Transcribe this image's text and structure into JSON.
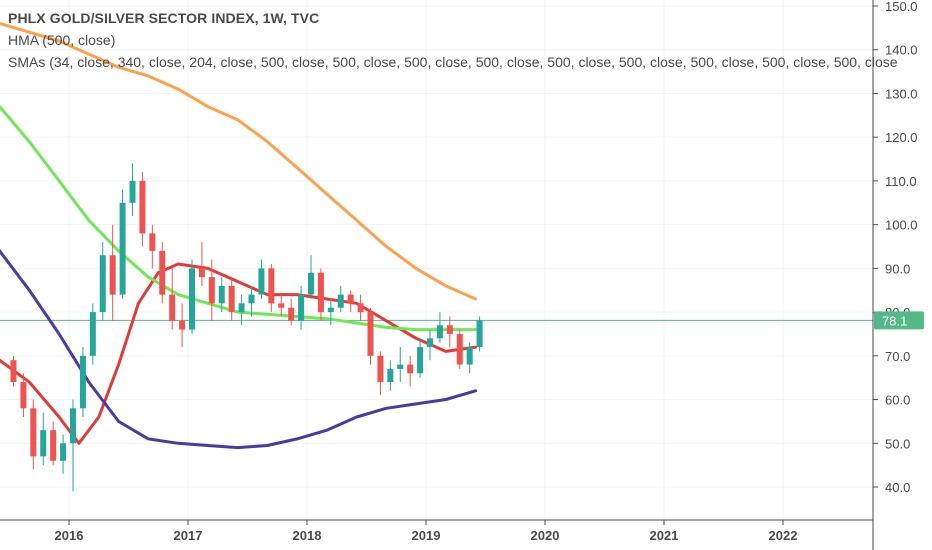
{
  "legend": {
    "title": "PHLX GOLD/SILVER SECTOR INDEX, 1W, TVC",
    "hma": "HMA (500, close)",
    "smas": "SMAs (34, close, 340, close, 204, close, 500, close, 500, close, 500, close, 500, close, 500, close, 500, close, 500, close, 500, close, 500, close"
  },
  "colors": {
    "up": "#26a69a",
    "down": "#ef5350",
    "orange": "#ffa04d",
    "green": "#6ee856",
    "red": "#e53935",
    "purple": "#4a3aa1",
    "price_tag": "#53b987"
  },
  "chart_data": {
    "type": "candlestick",
    "title": "PHLX GOLD/SILVER SECTOR INDEX, 1W, TVC",
    "ylim": [
      35,
      151
    ],
    "y_ticks": [
      "150.0",
      "140.0",
      "130.0",
      "120.0",
      "110.0",
      "100.0",
      "90.0",
      "80.0",
      "70.0",
      "60.0",
      "50.0",
      "40.0"
    ],
    "x_ticks": [
      "2016",
      "2017",
      "2018",
      "2019",
      "2020",
      "2021",
      "2022"
    ],
    "last_price": "78.1",
    "candles": [
      {
        "x": "2015-07",
        "o": 69,
        "h": 70,
        "l": 63,
        "c": 64
      },
      {
        "x": "2015-08",
        "o": 64,
        "h": 66,
        "l": 56,
        "c": 58
      },
      {
        "x": "2015-09",
        "o": 58,
        "h": 60,
        "l": 44,
        "c": 47
      },
      {
        "x": "2015-10",
        "o": 47,
        "h": 57,
        "l": 45,
        "c": 53
      },
      {
        "x": "2015-11",
        "o": 53,
        "h": 55,
        "l": 45,
        "c": 46
      },
      {
        "x": "2015-12",
        "o": 46,
        "h": 52,
        "l": 43,
        "c": 50
      },
      {
        "x": "2016-01",
        "o": 50,
        "h": 60,
        "l": 39,
        "c": 58
      },
      {
        "x": "2016-02",
        "o": 58,
        "h": 72,
        "l": 56,
        "c": 70
      },
      {
        "x": "2016-03",
        "o": 70,
        "h": 82,
        "l": 68,
        "c": 80
      },
      {
        "x": "2016-04",
        "o": 80,
        "h": 96,
        "l": 78,
        "c": 93
      },
      {
        "x": "2016-05",
        "o": 93,
        "h": 100,
        "l": 78,
        "c": 84
      },
      {
        "x": "2016-06",
        "o": 84,
        "h": 108,
        "l": 83,
        "c": 105
      },
      {
        "x": "2016-07",
        "o": 105,
        "h": 114,
        "l": 102,
        "c": 110
      },
      {
        "x": "2016-08",
        "o": 110,
        "h": 112,
        "l": 95,
        "c": 98
      },
      {
        "x": "2016-09",
        "o": 98,
        "h": 100,
        "l": 90,
        "c": 94
      },
      {
        "x": "2016-10",
        "o": 94,
        "h": 96,
        "l": 82,
        "c": 84
      },
      {
        "x": "2016-11",
        "o": 84,
        "h": 90,
        "l": 76,
        "c": 78
      },
      {
        "x": "2016-12",
        "o": 78,
        "h": 82,
        "l": 72,
        "c": 76
      },
      {
        "x": "2017-01",
        "o": 76,
        "h": 92,
        "l": 75,
        "c": 90
      },
      {
        "x": "2017-02",
        "o": 90,
        "h": 96,
        "l": 86,
        "c": 88
      },
      {
        "x": "2017-03",
        "o": 88,
        "h": 92,
        "l": 78,
        "c": 82
      },
      {
        "x": "2017-04",
        "o": 82,
        "h": 88,
        "l": 80,
        "c": 86
      },
      {
        "x": "2017-05",
        "o": 86,
        "h": 88,
        "l": 78,
        "c": 80
      },
      {
        "x": "2017-06",
        "o": 80,
        "h": 84,
        "l": 77,
        "c": 82
      },
      {
        "x": "2017-07",
        "o": 82,
        "h": 86,
        "l": 79,
        "c": 84
      },
      {
        "x": "2017-08",
        "o": 84,
        "h": 92,
        "l": 83,
        "c": 90
      },
      {
        "x": "2017-09",
        "o": 90,
        "h": 91,
        "l": 80,
        "c": 82
      },
      {
        "x": "2017-10",
        "o": 82,
        "h": 84,
        "l": 79,
        "c": 81
      },
      {
        "x": "2017-11",
        "o": 81,
        "h": 83,
        "l": 77,
        "c": 78
      },
      {
        "x": "2017-12",
        "o": 78,
        "h": 86,
        "l": 76,
        "c": 84
      },
      {
        "x": "2018-01",
        "o": 84,
        "h": 93,
        "l": 83,
        "c": 89
      },
      {
        "x": "2018-02",
        "o": 89,
        "h": 90,
        "l": 78,
        "c": 80
      },
      {
        "x": "2018-03",
        "o": 80,
        "h": 83,
        "l": 77,
        "c": 81
      },
      {
        "x": "2018-04",
        "o": 81,
        "h": 86,
        "l": 80,
        "c": 84
      },
      {
        "x": "2018-05",
        "o": 84,
        "h": 85,
        "l": 80,
        "c": 82
      },
      {
        "x": "2018-06",
        "o": 82,
        "h": 84,
        "l": 78,
        "c": 80
      },
      {
        "x": "2018-07",
        "o": 80,
        "h": 81,
        "l": 68,
        "c": 70
      },
      {
        "x": "2018-08",
        "o": 70,
        "h": 71,
        "l": 61,
        "c": 64
      },
      {
        "x": "2018-09",
        "o": 64,
        "h": 69,
        "l": 62,
        "c": 67
      },
      {
        "x": "2018-10",
        "o": 67,
        "h": 72,
        "l": 64,
        "c": 68
      },
      {
        "x": "2018-11",
        "o": 68,
        "h": 70,
        "l": 63,
        "c": 66
      },
      {
        "x": "2018-12",
        "o": 66,
        "h": 74,
        "l": 65,
        "c": 72
      },
      {
        "x": "2019-01",
        "o": 72,
        "h": 76,
        "l": 69,
        "c": 74
      },
      {
        "x": "2019-02",
        "o": 74,
        "h": 80,
        "l": 73,
        "c": 77
      },
      {
        "x": "2019-03",
        "o": 77,
        "h": 79,
        "l": 72,
        "c": 75
      },
      {
        "x": "2019-04",
        "o": 75,
        "h": 76,
        "l": 67,
        "c": 68
      },
      {
        "x": "2019-05",
        "o": 68,
        "h": 73,
        "l": 66,
        "c": 72
      },
      {
        "x": "2019-06",
        "o": 72,
        "h": 79,
        "l": 71,
        "c": 78.1
      }
    ],
    "series": [
      {
        "name": "HMA (500, close)",
        "color": "#e53935",
        "points": [
          [
            "2015-06",
            69
          ],
          [
            "2015-09",
            64
          ],
          [
            "2015-12",
            56
          ],
          [
            "2016-02",
            50
          ],
          [
            "2016-04",
            56
          ],
          [
            "2016-06",
            68
          ],
          [
            "2016-08",
            82
          ],
          [
            "2016-10",
            89
          ],
          [
            "2016-12",
            91
          ],
          [
            "2017-03",
            90
          ],
          [
            "2017-06",
            87
          ],
          [
            "2017-09",
            84
          ],
          [
            "2017-12",
            84
          ],
          [
            "2018-03",
            83
          ],
          [
            "2018-06",
            82
          ],
          [
            "2018-09",
            78
          ],
          [
            "2018-12",
            74
          ],
          [
            "2019-03",
            71
          ],
          [
            "2019-06",
            72
          ]
        ]
      },
      {
        "name": "",
        "color": "#ffa04d",
        "points": [
          [
            "2015-06",
            146
          ],
          [
            "2015-09",
            144
          ],
          [
            "2015-12",
            142
          ],
          [
            "2016-03",
            139
          ],
          [
            "2016-06",
            136
          ],
          [
            "2016-09",
            134
          ],
          [
            "2016-12",
            131
          ],
          [
            "2017-03",
            127
          ],
          [
            "2017-06",
            124
          ],
          [
            "2017-09",
            119
          ],
          [
            "2017-12",
            113
          ],
          [
            "2018-03",
            107
          ],
          [
            "2018-06",
            101
          ],
          [
            "2018-09",
            95
          ],
          [
            "2018-12",
            90
          ],
          [
            "2019-03",
            86
          ],
          [
            "2019-06",
            83
          ]
        ]
      },
      {
        "name": "",
        "color": "#6ee856",
        "points": [
          [
            "2015-06",
            127
          ],
          [
            "2015-09",
            119
          ],
          [
            "2015-12",
            110
          ],
          [
            "2016-03",
            101
          ],
          [
            "2016-06",
            94
          ],
          [
            "2016-09",
            88
          ],
          [
            "2016-12",
            84
          ],
          [
            "2017-03",
            82
          ],
          [
            "2017-06",
            80
          ],
          [
            "2017-09",
            79.5
          ],
          [
            "2017-12",
            79
          ],
          [
            "2018-03",
            78.5
          ],
          [
            "2018-06",
            77.5
          ],
          [
            "2018-09",
            76.5
          ],
          [
            "2018-12",
            76
          ],
          [
            "2019-03",
            76
          ],
          [
            "2019-06",
            76
          ]
        ]
      },
      {
        "name": "",
        "color": "#4a3aa1",
        "points": [
          [
            "2015-06",
            94
          ],
          [
            "2015-09",
            85
          ],
          [
            "2015-12",
            75
          ],
          [
            "2016-03",
            64
          ],
          [
            "2016-06",
            55
          ],
          [
            "2016-09",
            51
          ],
          [
            "2016-12",
            50
          ],
          [
            "2017-03",
            49.5
          ],
          [
            "2017-06",
            49
          ],
          [
            "2017-09",
            49.5
          ],
          [
            "2017-12",
            51
          ],
          [
            "2018-03",
            53
          ],
          [
            "2018-06",
            56
          ],
          [
            "2018-09",
            58
          ],
          [
            "2018-12",
            59
          ],
          [
            "2019-03",
            60
          ],
          [
            "2019-06",
            62
          ]
        ]
      }
    ]
  }
}
